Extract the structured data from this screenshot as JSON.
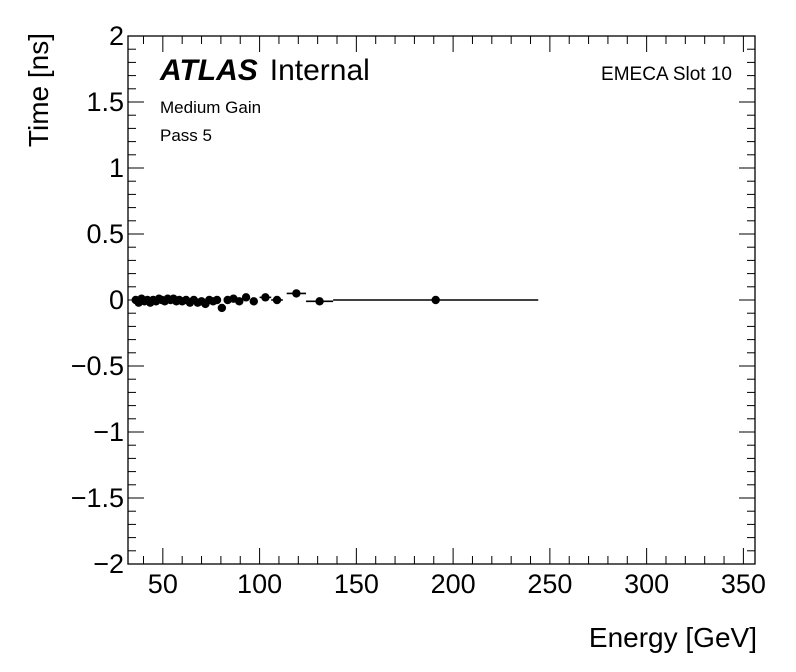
{
  "chart_data": {
    "type": "scatter",
    "title": "",
    "xlabel": "Energy [GeV]",
    "ylabel": "Time [ns]",
    "xlim": [
      32,
      356
    ],
    "ylim": [
      -2,
      2
    ],
    "x_ticks": [
      50,
      100,
      150,
      200,
      250,
      300,
      350
    ],
    "y_ticks": [
      -2,
      -1.5,
      -1,
      -0.5,
      0,
      0.5,
      1,
      1.5,
      2
    ],
    "x_tick_labels": [
      "50",
      "100",
      "150",
      "200",
      "250",
      "300",
      "350"
    ],
    "y_tick_labels": [
      "−2",
      "−1.5",
      "−1",
      "−0.5",
      "0",
      "0.5",
      "1",
      "1.5",
      "2"
    ],
    "annotations": {
      "experiment": "ATLAS",
      "status": "Internal",
      "gain": "Medium Gain",
      "pass": "Pass 5",
      "slot": "EMECA Slot 10"
    },
    "grid": false,
    "points": [
      {
        "x": 36,
        "y": 0.0,
        "xerr": 1.0
      },
      {
        "x": 37.5,
        "y": -0.02,
        "xerr": 0.75
      },
      {
        "x": 39,
        "y": 0.01,
        "xerr": 0.75
      },
      {
        "x": 40.5,
        "y": -0.01,
        "xerr": 0.75
      },
      {
        "x": 42,
        "y": 0.0,
        "xerr": 0.75
      },
      {
        "x": 43.5,
        "y": -0.02,
        "xerr": 0.75
      },
      {
        "x": 45,
        "y": 0.0,
        "xerr": 0.75
      },
      {
        "x": 46.5,
        "y": -0.01,
        "xerr": 0.75
      },
      {
        "x": 48,
        "y": 0.01,
        "xerr": 0.75
      },
      {
        "x": 49.5,
        "y": 0.0,
        "xerr": 0.75
      },
      {
        "x": 51,
        "y": -0.01,
        "xerr": 0.75
      },
      {
        "x": 52.5,
        "y": 0.01,
        "xerr": 0.75
      },
      {
        "x": 54,
        "y": 0.0,
        "xerr": 0.75
      },
      {
        "x": 55.5,
        "y": 0.01,
        "xerr": 0.75
      },
      {
        "x": 57,
        "y": -0.01,
        "xerr": 0.75
      },
      {
        "x": 58.5,
        "y": 0.0,
        "xerr": 0.75
      },
      {
        "x": 60,
        "y": -0.01,
        "xerr": 0.75
      },
      {
        "x": 62,
        "y": 0.0,
        "xerr": 1.0
      },
      {
        "x": 64,
        "y": -0.02,
        "xerr": 1.0
      },
      {
        "x": 66,
        "y": 0.0,
        "xerr": 1.0
      },
      {
        "x": 68,
        "y": -0.02,
        "xerr": 1.0
      },
      {
        "x": 70,
        "y": -0.01,
        "xerr": 1.0
      },
      {
        "x": 72,
        "y": -0.03,
        "xerr": 1.0
      },
      {
        "x": 74,
        "y": 0.0,
        "xerr": 1.0
      },
      {
        "x": 76,
        "y": -0.01,
        "xerr": 1.0
      },
      {
        "x": 78,
        "y": 0.0,
        "xerr": 1.0
      },
      {
        "x": 80.5,
        "y": -0.06,
        "xerr": 1.5
      },
      {
        "x": 83.5,
        "y": 0.0,
        "xerr": 1.5
      },
      {
        "x": 86.5,
        "y": 0.01,
        "xerr": 1.5
      },
      {
        "x": 89.5,
        "y": -0.01,
        "xerr": 1.5
      },
      {
        "x": 93,
        "y": 0.02,
        "xerr": 2.0
      },
      {
        "x": 97,
        "y": -0.01,
        "xerr": 2.0
      },
      {
        "x": 103,
        "y": 0.02,
        "xerr": 3.0
      },
      {
        "x": 109,
        "y": 0.0,
        "xerr": 3.0
      },
      {
        "x": 119,
        "y": 0.05,
        "xerr": 5.0
      },
      {
        "x": 131,
        "y": -0.01,
        "xerr": 7.0
      },
      {
        "x": 191,
        "y": 0.0,
        "xerr": 53.0
      }
    ]
  }
}
